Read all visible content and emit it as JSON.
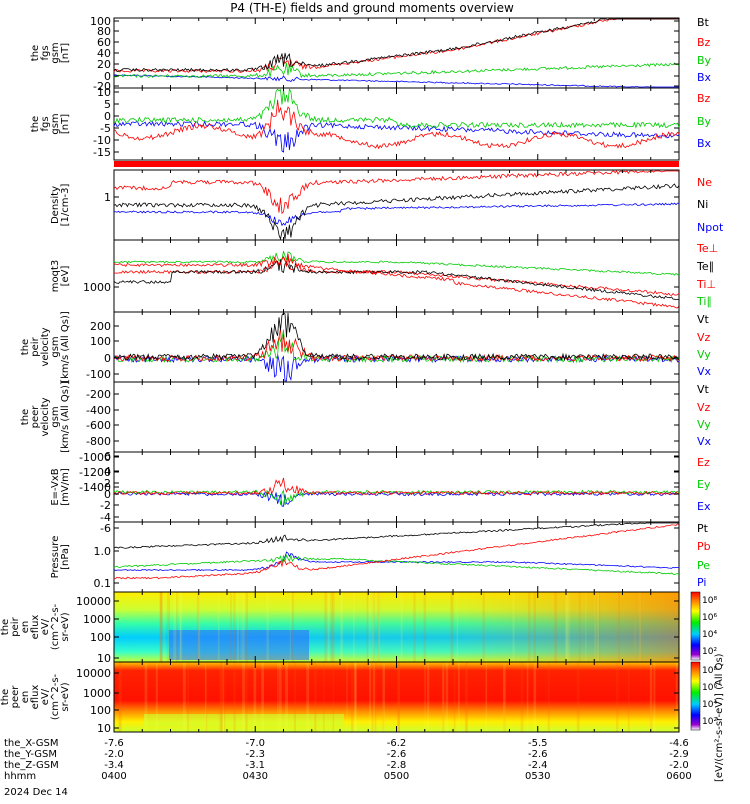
{
  "title": "P4 (TH-E) fields and ground moments overview",
  "colors": {
    "black": "#000000",
    "red": "#ff0000",
    "green": "#00cc00",
    "blue": "#0000ff"
  },
  "chart_data": [
    {
      "type": "line",
      "ylabel": [
        "the",
        "fgs",
        "gsm",
        "[nT]"
      ],
      "yticks": [
        "100",
        "80",
        "60",
        "40",
        "20",
        "0",
        "-20"
      ],
      "series": [
        {
          "name": "Bt",
          "color": "black"
        },
        {
          "name": "Bz",
          "color": "red"
        },
        {
          "name": "By",
          "color": "green"
        },
        {
          "name": "Bx",
          "color": "blue"
        }
      ]
    },
    {
      "type": "line",
      "ylabel": [
        "the",
        "fgs",
        "gsm",
        "[nT]"
      ],
      "yticks": [
        "10",
        "5",
        "0",
        "-5",
        "-10",
        "-15"
      ],
      "series": [
        {
          "name": "Bz",
          "color": "red"
        },
        {
          "name": "By",
          "color": "green"
        },
        {
          "name": "Bx",
          "color": "blue"
        }
      ]
    },
    {
      "type": "line",
      "ylabel": [
        "Density",
        "[1/cm-3]"
      ],
      "yticks": [
        "1"
      ],
      "series": [
        {
          "name": "Ne",
          "color": "red"
        },
        {
          "name": "Ni",
          "color": "black"
        },
        {
          "name": "Npot",
          "color": "blue"
        }
      ]
    },
    {
      "type": "line",
      "ylabel": [
        "moqt3",
        "[eV]"
      ],
      "yticks": [
        "1000"
      ],
      "series": [
        {
          "name": "Te⊥",
          "color": "red"
        },
        {
          "name": "Te∥",
          "color": "black"
        },
        {
          "name": "Ti⊥",
          "color": "red"
        },
        {
          "name": "Ti∥",
          "color": "green"
        }
      ]
    },
    {
      "type": "line",
      "ylabel": [
        "the",
        "peir",
        "velocity",
        "gsm",
        "[km/s (All Qs)]"
      ],
      "yticks": [
        "200",
        "100",
        "0",
        "-100"
      ],
      "series": [
        {
          "name": "Vt",
          "color": "black"
        },
        {
          "name": "Vz",
          "color": "red"
        },
        {
          "name": "Vy",
          "color": "green"
        },
        {
          "name": "Vx",
          "color": "blue"
        }
      ]
    },
    {
      "type": "line",
      "ylabel": [
        "the",
        "peer",
        "velocity",
        "gsm",
        "[km/s (All Qs)]"
      ],
      "yticks": [
        "-200",
        "-400",
        "-600",
        "-800",
        "-1000",
        "-1200",
        "-1400"
      ],
      "series": [
        {
          "name": "Vt",
          "color": "black"
        },
        {
          "name": "Vz",
          "color": "red"
        },
        {
          "name": "Vy",
          "color": "green"
        },
        {
          "name": "Vx",
          "color": "blue"
        }
      ]
    },
    {
      "type": "line",
      "ylabel": [
        "E=-VxB",
        "[mV/m]"
      ],
      "yticks": [
        "6",
        "4",
        "2",
        "0",
        "-2",
        "-4",
        "-6"
      ],
      "series": [
        {
          "name": "Ez",
          "color": "red"
        },
        {
          "name": "Ey",
          "color": "green"
        },
        {
          "name": "Ex",
          "color": "blue"
        }
      ]
    },
    {
      "type": "line",
      "ylabel": [
        "Pressure",
        "[nPa]"
      ],
      "yticks": [
        "1.0",
        "0.1"
      ],
      "series": [
        {
          "name": "Pt",
          "color": "black"
        },
        {
          "name": "Pb",
          "color": "red"
        },
        {
          "name": "Pe",
          "color": "green"
        },
        {
          "name": "Pi",
          "color": "blue"
        }
      ]
    },
    {
      "type": "heatmap",
      "ylabel": [
        "the",
        "peir",
        "en",
        "eflux",
        "eV/",
        "(cm^2-s-",
        "sr-eV)"
      ],
      "yticks": [
        "10000",
        "1000",
        "100",
        "10"
      ]
    },
    {
      "type": "heatmap",
      "ylabel": [
        "the",
        "peer",
        "en",
        "eflux",
        "eV/",
        "(cm^2-s-",
        "sr-eV)"
      ],
      "yticks": [
        "10000",
        "1000",
        "100",
        "10"
      ]
    }
  ],
  "colorbar1": {
    "ticks": [
      "10⁸",
      "10⁶",
      "10⁴",
      "10²"
    ]
  },
  "colorbar2": {
    "ticks": [
      "10⁸",
      "10⁶",
      "10⁴",
      "10²"
    ]
  },
  "colorbar_label": "[eV/(cm²-s-sr-eV)]  (All Qs)",
  "xaxis": {
    "rows": [
      {
        "label": "the_X-GSM",
        "values": [
          "-7.6",
          "-7.0",
          "-6.2",
          "-5.5",
          "-4.6"
        ]
      },
      {
        "label": "the_Y-GSM",
        "values": [
          "-2.0",
          "-2.3",
          "-2.6",
          "-2.6",
          "-2.9"
        ]
      },
      {
        "label": "the_Z-GSM",
        "values": [
          "-3.4",
          "-3.1",
          "-2.8",
          "-2.4",
          "-2.0"
        ]
      },
      {
        "label": "hhmm",
        "values": [
          "0400",
          "0430",
          "0500",
          "0530",
          "0600"
        ]
      }
    ],
    "date": "2024 Dec 14"
  }
}
